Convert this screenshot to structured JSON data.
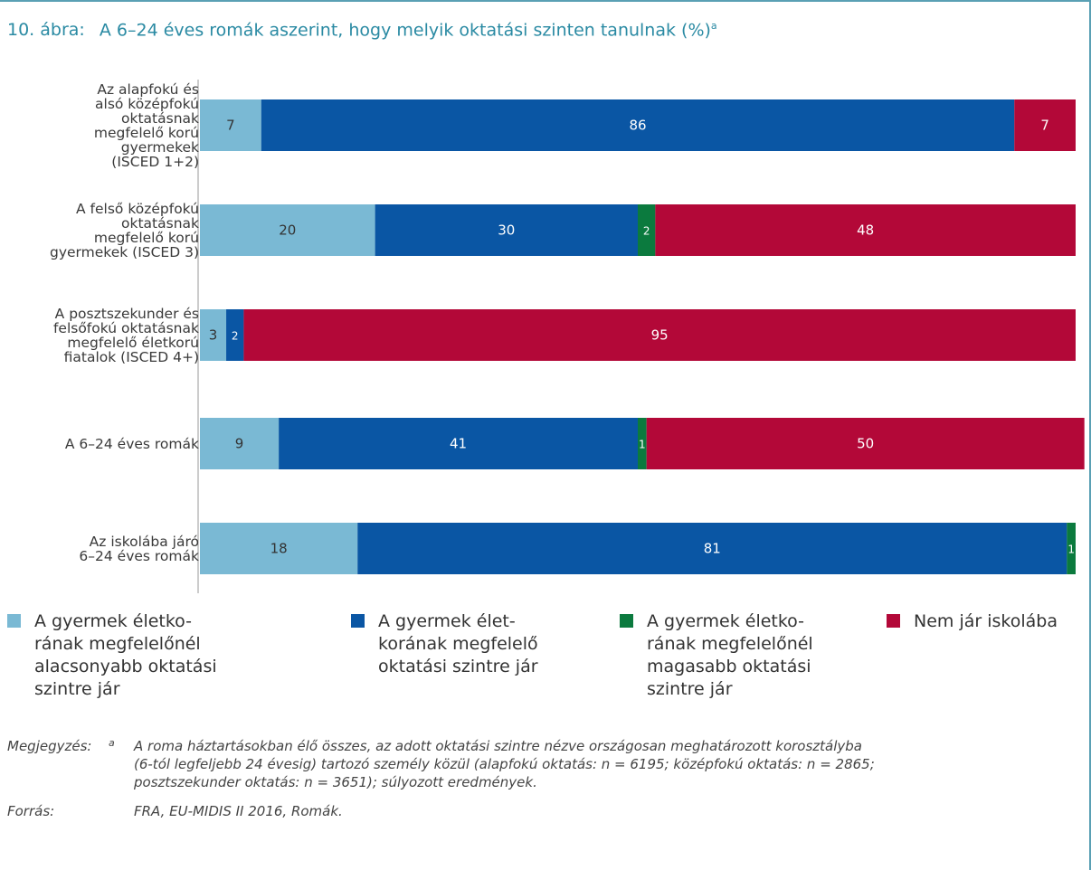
{
  "title": {
    "number": "10. ábra:",
    "text": "A 6–24 éves romák aszerint, hogy melyik oktatási szinten tanulnak (%)",
    "superscript": "a"
  },
  "chart_data": {
    "type": "bar",
    "orientation": "horizontal",
    "stacked": true,
    "categories": [
      [
        "Az alapfokú és",
        "alsó középfokú",
        "oktatásnak",
        "megfelelő korú",
        "gyermekek",
        "(ISCED 1+2)"
      ],
      [
        "A felső középfokú",
        "oktatásnak",
        "megfelelő korú",
        "gyermekek (ISCED 3)"
      ],
      [
        "A posztszekunder és",
        "felsőfokú oktatásnak",
        "megfelelő életkorú",
        "fiatalok (ISCED 4+)"
      ],
      [
        "A 6–24 éves romák"
      ],
      [
        "Az iskolába járó",
        "6–24 éves romák"
      ]
    ],
    "series": [
      {
        "name": "A gyermek életkorának megfelelőnél alacsonyabb oktatási szintre jár",
        "color": "#7ab9d4",
        "values": [
          7,
          20,
          3,
          9,
          18
        ]
      },
      {
        "name": "A gyermek életkorának megfelelő oktatási szintre jár",
        "color": "#0a56a4",
        "values": [
          86,
          30,
          2,
          41,
          81
        ]
      },
      {
        "name": "A gyermek életkorának megfelelőnél magasabb oktatási szintre jár",
        "color": "#0b7a3e",
        "values": [
          0,
          2,
          0,
          1,
          1
        ]
      },
      {
        "name": "Nem jár iskolába",
        "color": "#b30838",
        "values": [
          7,
          48,
          95,
          50,
          0
        ]
      }
    ],
    "xlim": [
      0,
      100
    ],
    "grid": false,
    "legend_position": "bottom"
  },
  "legend": [
    {
      "lines": [
        "A gyermek életko-",
        "rának megfelelőnél",
        "alacsonyabb oktatási",
        "szintre jár"
      ],
      "color": "#7ab9d4"
    },
    {
      "lines": [
        "A gyermek élet-",
        "korának megfelelő",
        "oktatási szintre jár"
      ],
      "color": "#0a56a4"
    },
    {
      "lines": [
        "A gyermek életko-",
        "rának megfelelőnél",
        "magasabb oktatási",
        "szintre jár"
      ],
      "color": "#0b7a3e"
    },
    {
      "lines": [
        "Nem jár iskolába"
      ],
      "color": "#b30838"
    }
  ],
  "notes": {
    "note_label": "Megjegyzés:",
    "note_marker": "a",
    "note_lines": [
      "A roma háztartásokban élő összes, az adott oktatási szintre nézve országosan meghatározott korosztályba",
      "(6-tól legfeljebb 24 évesig) tartozó személy közül (alapfokú oktatás: n = 6195; középfokú oktatás: n = 2865;",
      "posztszekunder oktatás: n = 3651); súlyozott eredmények."
    ],
    "source_label": "Forrás:",
    "source_text": "FRA, EU-MIDIS II 2016, Romák."
  }
}
